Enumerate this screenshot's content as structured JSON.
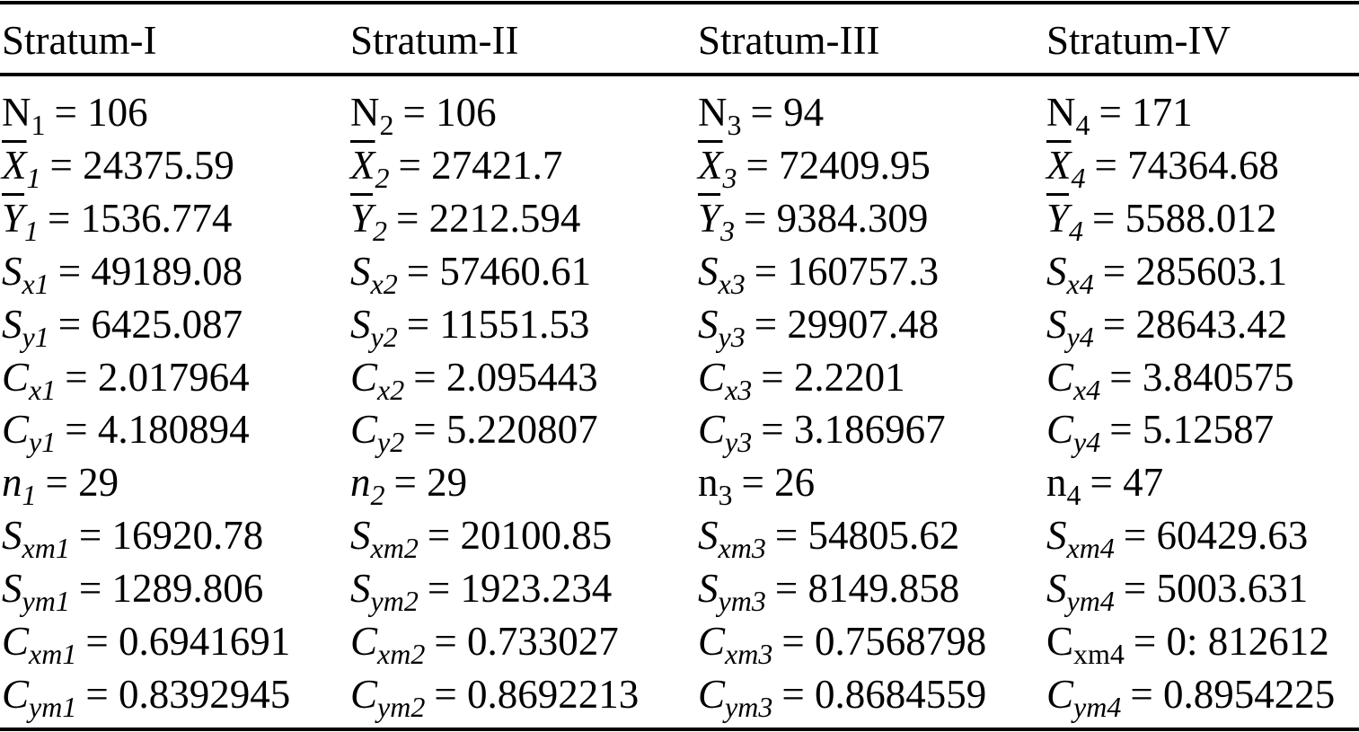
{
  "table": {
    "header": [
      "Stratum-I",
      "Stratum-II",
      "Stratum-III",
      "Stratum-IV"
    ],
    "rows": [
      [
        {
          "base": "N",
          "sub": "1",
          "rest": "= 106",
          "italic": false
        },
        {
          "base": "N",
          "sub": "2",
          "rest": "= 106",
          "italic": false
        },
        {
          "base": "N",
          "sub": "3",
          "rest": "= 94",
          "italic": false
        },
        {
          "base": "N",
          "sub": "4",
          "rest": "= 171",
          "italic": false
        }
      ],
      [
        {
          "base": "X",
          "sub": "1",
          "rest": "= 24375.59",
          "italic": true,
          "overline": true
        },
        {
          "base": "X",
          "sub": "2",
          "rest": "= 27421.7",
          "italic": true,
          "overline": true
        },
        {
          "base": "X",
          "sub": "3",
          "rest": "= 72409.95",
          "italic": true,
          "overline": true
        },
        {
          "base": "X",
          "sub": "4",
          "rest": "= 74364.68",
          "italic": true,
          "overline": true
        }
      ],
      [
        {
          "base": "Y",
          "sub": "1",
          "rest": "= 1536.774",
          "italic": true,
          "overline": true
        },
        {
          "base": "Y",
          "sub": "2",
          "rest": "= 2212.594",
          "italic": true,
          "overline": true
        },
        {
          "base": "Y",
          "sub": "3",
          "rest": "= 9384.309",
          "italic": true,
          "overline": true
        },
        {
          "base": "Y",
          "sub": "4",
          "rest": "= 5588.012",
          "italic": true,
          "overline": true
        }
      ],
      [
        {
          "base": "S",
          "sub": "x1",
          "rest": "= 49189.08",
          "italic": true
        },
        {
          "base": "S",
          "sub": "x2",
          "rest": "= 57460.61",
          "italic": true
        },
        {
          "base": "S",
          "sub": "x3",
          "rest": "= 160757.3",
          "italic": true
        },
        {
          "base": "S",
          "sub": "x4",
          "rest": "= 285603.1",
          "italic": true
        }
      ],
      [
        {
          "base": "S",
          "sub": "y1",
          "rest": "= 6425.087",
          "italic": true
        },
        {
          "base": "S",
          "sub": "y2",
          "rest": "= 11551.53",
          "italic": true
        },
        {
          "base": "S",
          "sub": "y3",
          "rest": "= 29907.48",
          "italic": true
        },
        {
          "base": "S",
          "sub": "y4",
          "rest": "= 28643.42",
          "italic": true
        }
      ],
      [
        {
          "base": "C",
          "sub": "x1",
          "rest": "= 2.017964",
          "italic": true
        },
        {
          "base": "C",
          "sub": "x2",
          "rest": "= 2.095443",
          "italic": true
        },
        {
          "base": "C",
          "sub": "x3",
          "rest": "= 2.2201",
          "italic": true
        },
        {
          "base": "C",
          "sub": "x4",
          "rest": "= 3.840575",
          "italic": true
        }
      ],
      [
        {
          "base": "C",
          "sub": "y1",
          "rest": "= 4.180894",
          "italic": true
        },
        {
          "base": "C",
          "sub": "y2",
          "rest": "= 5.220807",
          "italic": true
        },
        {
          "base": "C",
          "sub": "y3",
          "rest": "= 3.186967",
          "italic": true
        },
        {
          "base": "C",
          "sub": "y4",
          "rest": "= 5.12587",
          "italic": true
        }
      ],
      [
        {
          "base": "n",
          "sub": "1",
          "rest": "= 29",
          "italic": true
        },
        {
          "base": "n",
          "sub": "2",
          "rest": "= 29",
          "italic": true
        },
        {
          "base": "n",
          "sub": "3",
          "rest": "= 26",
          "italic": false
        },
        {
          "base": "n",
          "sub": "4",
          "rest": "= 47",
          "italic": false
        }
      ],
      [
        {
          "base": "S",
          "sub": "xm1",
          "rest": "= 16920.78",
          "italic": true
        },
        {
          "base": "S",
          "sub": "xm2",
          "rest": "= 20100.85",
          "italic": true
        },
        {
          "base": "S",
          "sub": "xm3",
          "rest": "= 54805.62",
          "italic": true
        },
        {
          "base": "S",
          "sub": "xm4",
          "rest": "= 60429.63",
          "italic": true
        }
      ],
      [
        {
          "base": "S",
          "sub": "ym1",
          "rest": "= 1289.806",
          "italic": true
        },
        {
          "base": "S",
          "sub": "ym2",
          "rest": "= 1923.234",
          "italic": true
        },
        {
          "base": "S",
          "sub": "ym3",
          "rest": "= 8149.858",
          "italic": true
        },
        {
          "base": "S",
          "sub": "ym4",
          "rest": "= 5003.631",
          "italic": true
        }
      ],
      [
        {
          "base": "C",
          "sub": "xm1",
          "rest": "= 0.6941691",
          "italic": true
        },
        {
          "base": "C",
          "sub": "xm2",
          "rest": "= 0.733027",
          "italic": true
        },
        {
          "base": "C",
          "sub": "xm3",
          "rest": "= 0.7568798",
          "italic": true
        },
        {
          "base": "C",
          "sub": "xm4",
          "rest": "= 0: 812612",
          "italic": false
        }
      ],
      [
        {
          "base": "C",
          "sub": "ym1",
          "rest": "= 0.8392945",
          "italic": true
        },
        {
          "base": "C",
          "sub": "ym2",
          "rest": "= 0.8692213",
          "italic": true
        },
        {
          "base": "C",
          "sub": "ym3",
          "rest": "= 0.8684559",
          "italic": true
        },
        {
          "base": "C",
          "sub": "ym4",
          "rest": "= 0.8954225",
          "italic": true
        }
      ]
    ]
  }
}
